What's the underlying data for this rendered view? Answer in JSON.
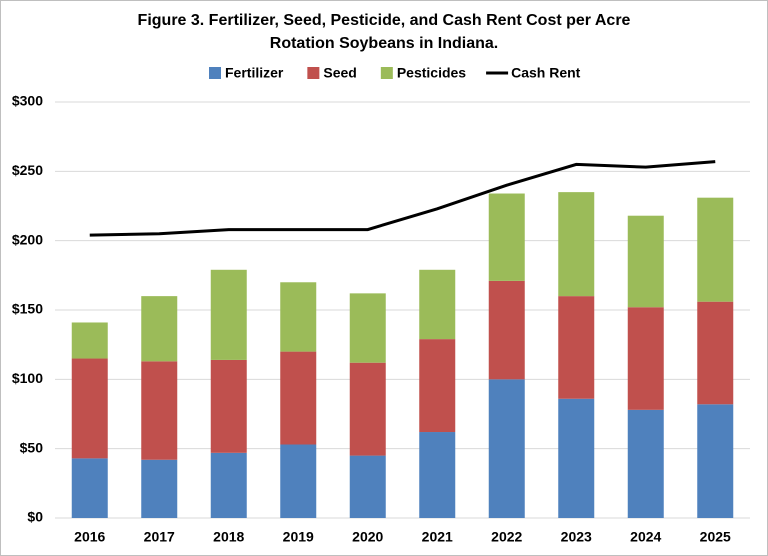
{
  "chart_data": {
    "type": "bar",
    "stacked": true,
    "title": [
      "Figure 3. Fertilizer, Seed, Pesticide, and Cash Rent Cost per Acre",
      "Rotation Soybeans in Indiana."
    ],
    "categories": [
      "2016",
      "2017",
      "2018",
      "2019",
      "2020",
      "2021",
      "2022",
      "2023",
      "2024",
      "2025"
    ],
    "series": [
      {
        "name": "Fertilizer",
        "color": "#4f81bd",
        "values": [
          43,
          42,
          47,
          53,
          45,
          62,
          100,
          86,
          78,
          82
        ]
      },
      {
        "name": "Seed",
        "color": "#c0504d",
        "values": [
          72,
          71,
          67,
          67,
          67,
          67,
          71,
          74,
          74,
          74
        ]
      },
      {
        "name": "Pesticides",
        "color": "#9bbb59",
        "values": [
          26,
          47,
          65,
          50,
          50,
          50,
          63,
          75,
          66,
          75
        ]
      },
      {
        "name": "Cash Rent",
        "color": "#000000",
        "type": "line",
        "values": [
          204,
          205,
          208,
          208,
          208,
          223,
          240,
          255,
          253,
          257
        ]
      }
    ],
    "ylim": [
      0,
      300
    ],
    "yticks": [
      {
        "value": 0,
        "label": "$0"
      },
      {
        "value": 50,
        "label": "$50"
      },
      {
        "value": 100,
        "label": "$100"
      },
      {
        "value": 150,
        "label": "$150"
      },
      {
        "value": 200,
        "label": "$200"
      },
      {
        "value": 250,
        "label": "$250"
      },
      {
        "value": 300,
        "label": "$300"
      }
    ],
    "grid": true,
    "legend": "top"
  }
}
